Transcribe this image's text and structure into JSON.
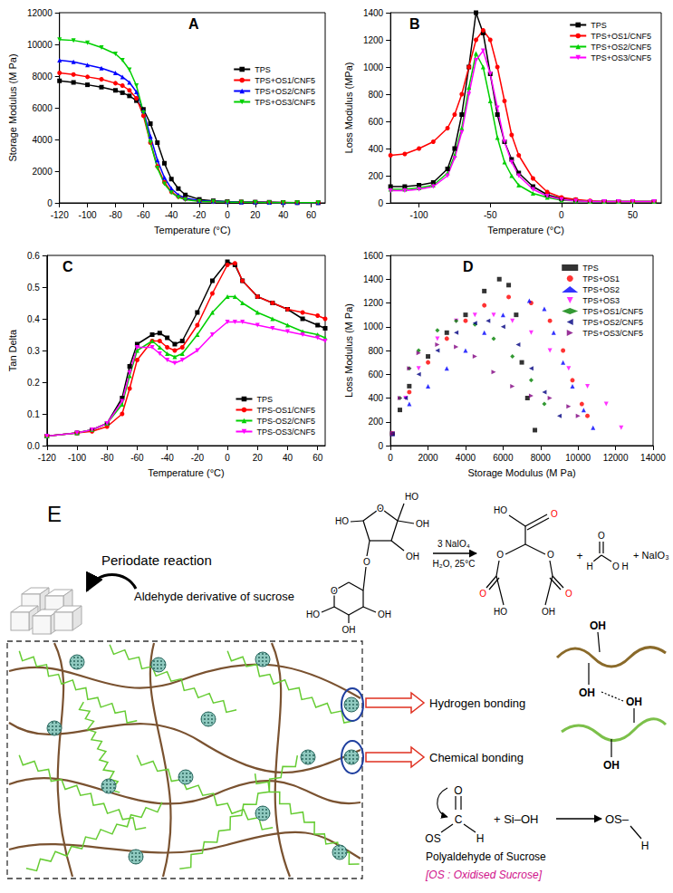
{
  "chart_data": [
    {
      "type": "line",
      "label": "A",
      "x_label": "Temperature (°C)",
      "y_label": "Storage Modulus (M Pa)",
      "x": [
        -120,
        -110,
        -100,
        -90,
        -80,
        -75,
        -70,
        -65,
        -60,
        -55,
        -50,
        -45,
        -40,
        -35,
        -30,
        -20,
        -10,
        0,
        10,
        20,
        30,
        40,
        50,
        65
      ],
      "xlim": [
        -120,
        70
      ],
      "xticks": [
        -120,
        -100,
        -80,
        -60,
        -40,
        -20,
        0,
        20,
        40,
        60
      ],
      "ylim": [
        0,
        12000
      ],
      "yticks": [
        0,
        2000,
        4000,
        6000,
        8000,
        10000,
        12000
      ],
      "grid": false,
      "legend": "right",
      "series": [
        {
          "name": "TPS",
          "color": "#000000",
          "marker": "square",
          "values": [
            7700,
            7600,
            7450,
            7300,
            7100,
            6950,
            6750,
            6450,
            5900,
            5000,
            3800,
            2500,
            1500,
            900,
            500,
            220,
            130,
            80,
            60,
            50,
            40,
            30,
            20,
            10
          ]
        },
        {
          "name": "TPS+OS1/CNF5",
          "color": "#ff0000",
          "marker": "circle",
          "values": [
            8200,
            8100,
            7950,
            7800,
            7550,
            7400,
            7100,
            6600,
            5500,
            3800,
            2300,
            1300,
            700,
            400,
            250,
            120,
            80,
            60,
            50,
            40,
            30,
            20,
            15,
            10
          ]
        },
        {
          "name": "TPS+OS2/CNF5",
          "color": "#0000ff",
          "marker": "triangle",
          "values": [
            9000,
            8900,
            8700,
            8500,
            8200,
            7950,
            7600,
            7000,
            5800,
            4200,
            2700,
            1600,
            900,
            500,
            300,
            150,
            100,
            70,
            50,
            40,
            30,
            20,
            15,
            10
          ]
        },
        {
          "name": "TPS+OS3/CNF5",
          "color": "#00d000",
          "marker": "down-triangle",
          "values": [
            10300,
            10250,
            10100,
            9800,
            9400,
            9000,
            8400,
            7400,
            5700,
            3800,
            2200,
            1200,
            650,
            350,
            200,
            100,
            70,
            50,
            40,
            30,
            20,
            15,
            10,
            10
          ]
        }
      ]
    },
    {
      "type": "line",
      "label": "B",
      "x_label": "Temperature (°C)",
      "y_label": "Loss Modulus (MPa)",
      "x": [
        -120,
        -110,
        -100,
        -90,
        -80,
        -75,
        -70,
        -65,
        -60,
        -55,
        -50,
        -45,
        -40,
        -35,
        -30,
        -20,
        -10,
        0,
        10,
        20,
        30,
        40,
        50,
        65
      ],
      "xlim": [
        -120,
        70
      ],
      "xticks": [
        -100,
        -50,
        0,
        50
      ],
      "ylim": [
        0,
        1400
      ],
      "yticks": [
        0,
        200,
        400,
        600,
        800,
        1000,
        1200,
        1400
      ],
      "grid": false,
      "legend": "upper right",
      "series": [
        {
          "name": "TPS",
          "color": "#000000",
          "marker": "square",
          "values": [
            120,
            120,
            130,
            150,
            250,
            400,
            650,
            1000,
            1400,
            1250,
            950,
            650,
            450,
            320,
            220,
            120,
            60,
            30,
            20,
            10,
            10,
            10,
            10,
            10
          ]
        },
        {
          "name": "TPS+OS1/CNF5",
          "color": "#ff0000",
          "marker": "circle",
          "values": [
            350,
            360,
            400,
            450,
            550,
            650,
            800,
            1000,
            1200,
            1270,
            1200,
            1000,
            750,
            500,
            350,
            180,
            80,
            40,
            25,
            15,
            10,
            10,
            10,
            10
          ]
        },
        {
          "name": "TPS+OS2/CNF5",
          "color": "#00d000",
          "marker": "triangle",
          "values": [
            100,
            100,
            110,
            130,
            220,
            350,
            550,
            850,
            1100,
            1000,
            750,
            480,
            300,
            200,
            130,
            70,
            40,
            20,
            15,
            10,
            10,
            10,
            10,
            10
          ]
        },
        {
          "name": "TPS+OS3/CNF5",
          "color": "#ff00ff",
          "marker": "down-triangle",
          "values": [
            90,
            90,
            100,
            120,
            200,
            330,
            520,
            800,
            1050,
            1120,
            950,
            700,
            450,
            300,
            200,
            100,
            50,
            25,
            15,
            10,
            10,
            10,
            10,
            10
          ]
        }
      ]
    },
    {
      "type": "line",
      "label": "C",
      "x_label": "Temperature (°C)",
      "y_label": "Tan Delta",
      "x": [
        -120,
        -100,
        -90,
        -80,
        -70,
        -65,
        -60,
        -50,
        -45,
        -40,
        -35,
        -30,
        -20,
        -10,
        0,
        5,
        10,
        20,
        30,
        40,
        50,
        60,
        65
      ],
      "xlim": [
        -120,
        65
      ],
      "xticks": [
        -120,
        -100,
        -80,
        -60,
        -40,
        -20,
        0,
        20,
        40,
        60
      ],
      "ylim": [
        0,
        0.6
      ],
      "yticks": [
        {
          "value": 0,
          "label": "0.0"
        },
        0.1,
        0.2,
        0.3,
        0.4,
        0.5,
        0.6
      ],
      "grid": false,
      "legend": "lower right",
      "series": [
        {
          "name": "TPS",
          "color": "#000000",
          "marker": "square",
          "values": [
            0.03,
            0.04,
            0.05,
            0.07,
            0.15,
            0.25,
            0.32,
            0.35,
            0.355,
            0.34,
            0.32,
            0.33,
            0.42,
            0.52,
            0.58,
            0.57,
            0.52,
            0.47,
            0.45,
            0.43,
            0.4,
            0.38,
            0.37
          ]
        },
        {
          "name": "TPS-OS1/CNF5",
          "color": "#ff0000",
          "marker": "circle",
          "values": [
            0.03,
            0.04,
            0.045,
            0.06,
            0.1,
            0.18,
            0.27,
            0.33,
            0.33,
            0.31,
            0.3,
            0.31,
            0.38,
            0.48,
            0.57,
            0.575,
            0.52,
            0.47,
            0.45,
            0.43,
            0.42,
            0.41,
            0.4
          ]
        },
        {
          "name": "TPS-OS2/CNF5",
          "color": "#00d000",
          "marker": "triangle",
          "values": [
            0.03,
            0.04,
            0.05,
            0.07,
            0.13,
            0.22,
            0.3,
            0.33,
            0.31,
            0.29,
            0.28,
            0.29,
            0.35,
            0.42,
            0.47,
            0.47,
            0.45,
            0.42,
            0.4,
            0.38,
            0.36,
            0.35,
            0.34
          ]
        },
        {
          "name": "TPS-OS3/CNF5",
          "color": "#ff00ff",
          "marker": "down-triangle",
          "values": [
            0.03,
            0.04,
            0.05,
            0.07,
            0.14,
            0.23,
            0.31,
            0.31,
            0.29,
            0.27,
            0.26,
            0.27,
            0.3,
            0.35,
            0.39,
            0.39,
            0.39,
            0.38,
            0.37,
            0.36,
            0.35,
            0.34,
            0.33
          ]
        }
      ]
    },
    {
      "type": "scatter",
      "label": "D",
      "x_label": "Storage Modulus (M Pa)",
      "y_label": "Loss Modulus (M Pa)",
      "xlim": [
        0,
        14000
      ],
      "xticks": [
        0,
        2000,
        4000,
        6000,
        8000,
        10000,
        12000,
        14000
      ],
      "ylim": [
        0,
        1600
      ],
      "yticks": [
        0,
        200,
        400,
        600,
        800,
        1000,
        1200,
        1400,
        1600
      ],
      "grid": false,
      "legend": "upper right",
      "series": [
        {
          "name": "TPS",
          "color": "#000000",
          "marker": "square",
          "x": [
            100,
            500,
            1000,
            2000,
            3000,
            4000,
            5000,
            5800,
            6300,
            6700,
            7000,
            7300,
            7700
          ],
          "values": [
            100,
            300,
            500,
            750,
            950,
            1100,
            1300,
            1400,
            1350,
            1100,
            700,
            400,
            130
          ]
        },
        {
          "name": "TPS+OS1",
          "color": "#ff0000",
          "marker": "circle",
          "x": [
            100,
            1000,
            2000,
            3000,
            4000,
            5000,
            6300,
            7500,
            8500,
            9200,
            9700,
            10200,
            10500
          ],
          "values": [
            100,
            450,
            700,
            900,
            1050,
            1180,
            1250,
            1200,
            1050,
            800,
            550,
            350,
            250
          ]
        },
        {
          "name": "TPS+OS2",
          "color": "#0000ff",
          "marker": "triangle",
          "x": [
            100,
            1000,
            2000,
            3000,
            4000,
            5000,
            6000,
            7400,
            8200,
            8700,
            9200,
            9700,
            10300,
            10800
          ],
          "values": [
            100,
            350,
            500,
            650,
            800,
            950,
            1100,
            1220,
            1150,
            950,
            700,
            500,
            300,
            150
          ]
        },
        {
          "name": "TPS+OS3",
          "color": "#ff00ff",
          "marker": "down-triangle",
          "x": [
            100,
            800,
            1500,
            2500,
            3500,
            4500,
            5500,
            6500,
            7500,
            8500,
            9500,
            10500,
            11500,
            12300
          ],
          "values": [
            100,
            400,
            650,
            900,
            1050,
            1100,
            1100,
            1050,
            950,
            800,
            650,
            500,
            350,
            150
          ]
        },
        {
          "name": "TPS+OS1/CNF5",
          "color": "#008000",
          "marker": "diamond",
          "x": [
            100,
            500,
            1000,
            1500,
            2500,
            3500,
            4500,
            5500,
            6500,
            7500,
            8200
          ],
          "values": [
            100,
            400,
            650,
            800,
            970,
            1050,
            1020,
            900,
            750,
            550,
            350
          ]
        },
        {
          "name": "TPS+OS2/CNF5",
          "color": "#000080",
          "marker": "left-triangle",
          "x": [
            100,
            800,
            1500,
            2500,
            3500,
            4500,
            5200,
            6000,
            6800,
            7500,
            8200,
            9000
          ],
          "values": [
            100,
            400,
            600,
            800,
            950,
            1030,
            1050,
            1000,
            850,
            650,
            450,
            250
          ]
        },
        {
          "name": "TPS+OS3/CNF5",
          "color": "#800080",
          "marker": "right-triangle",
          "x": [
            100,
            500,
            1000,
            1500,
            2500,
            3500,
            4500,
            5500,
            6500,
            7500,
            8500,
            9500,
            10000
          ],
          "values": [
            100,
            400,
            650,
            780,
            850,
            830,
            750,
            620,
            500,
            420,
            400,
            330,
            250
          ]
        }
      ]
    }
  ],
  "diagram": {
    "label": "E",
    "periodate": {
      "title": "Periodate reaction",
      "result": "Aldehyde derivative of sucrose"
    },
    "reaction": {
      "reagent": "3 NaIO₄",
      "conditions": "H₂O, 25°C",
      "sucrose_labels": [
        "O",
        "OH",
        "HO",
        "OH",
        "HO",
        "O",
        "O",
        "HO",
        "OH",
        "OH"
      ],
      "product_labels": [
        {
          "text": "HO",
          "color": "#000000"
        },
        {
          "text": "O",
          "color": "#ff0000"
        },
        {
          "text": "O",
          "color": "#000000"
        },
        {
          "text": "O",
          "color": "#000000"
        },
        {
          "text": "O",
          "color": "#ff0000"
        },
        {
          "text": "O",
          "color": "#ff0000"
        },
        {
          "text": "OH",
          "color": "#000000"
        },
        {
          "text": "HO",
          "color": "#000000"
        }
      ],
      "plus": "+",
      "formic_acid_labels": [
        "H",
        "O",
        "O",
        "H"
      ],
      "byproduct": "+ NaIO₃"
    },
    "network": {
      "annotations": [
        "Hydrogen bonding",
        "Chemical bonding"
      ],
      "chain_labels": [
        "OH",
        "OH",
        "OH",
        "OH"
      ]
    },
    "coupling": {
      "aldehyde_labels": [
        "O",
        "C",
        "OS",
        "H"
      ],
      "reagent": "+  Si–OH",
      "product": "OS–",
      "product_fragment": "H",
      "captions": [
        {
          "text": "Polyaldehyde of Sucrose",
          "color": "#000000"
        },
        {
          "text": "[OS : Oxidised Sucrose]",
          "color": "#d0108a"
        }
      ]
    }
  }
}
